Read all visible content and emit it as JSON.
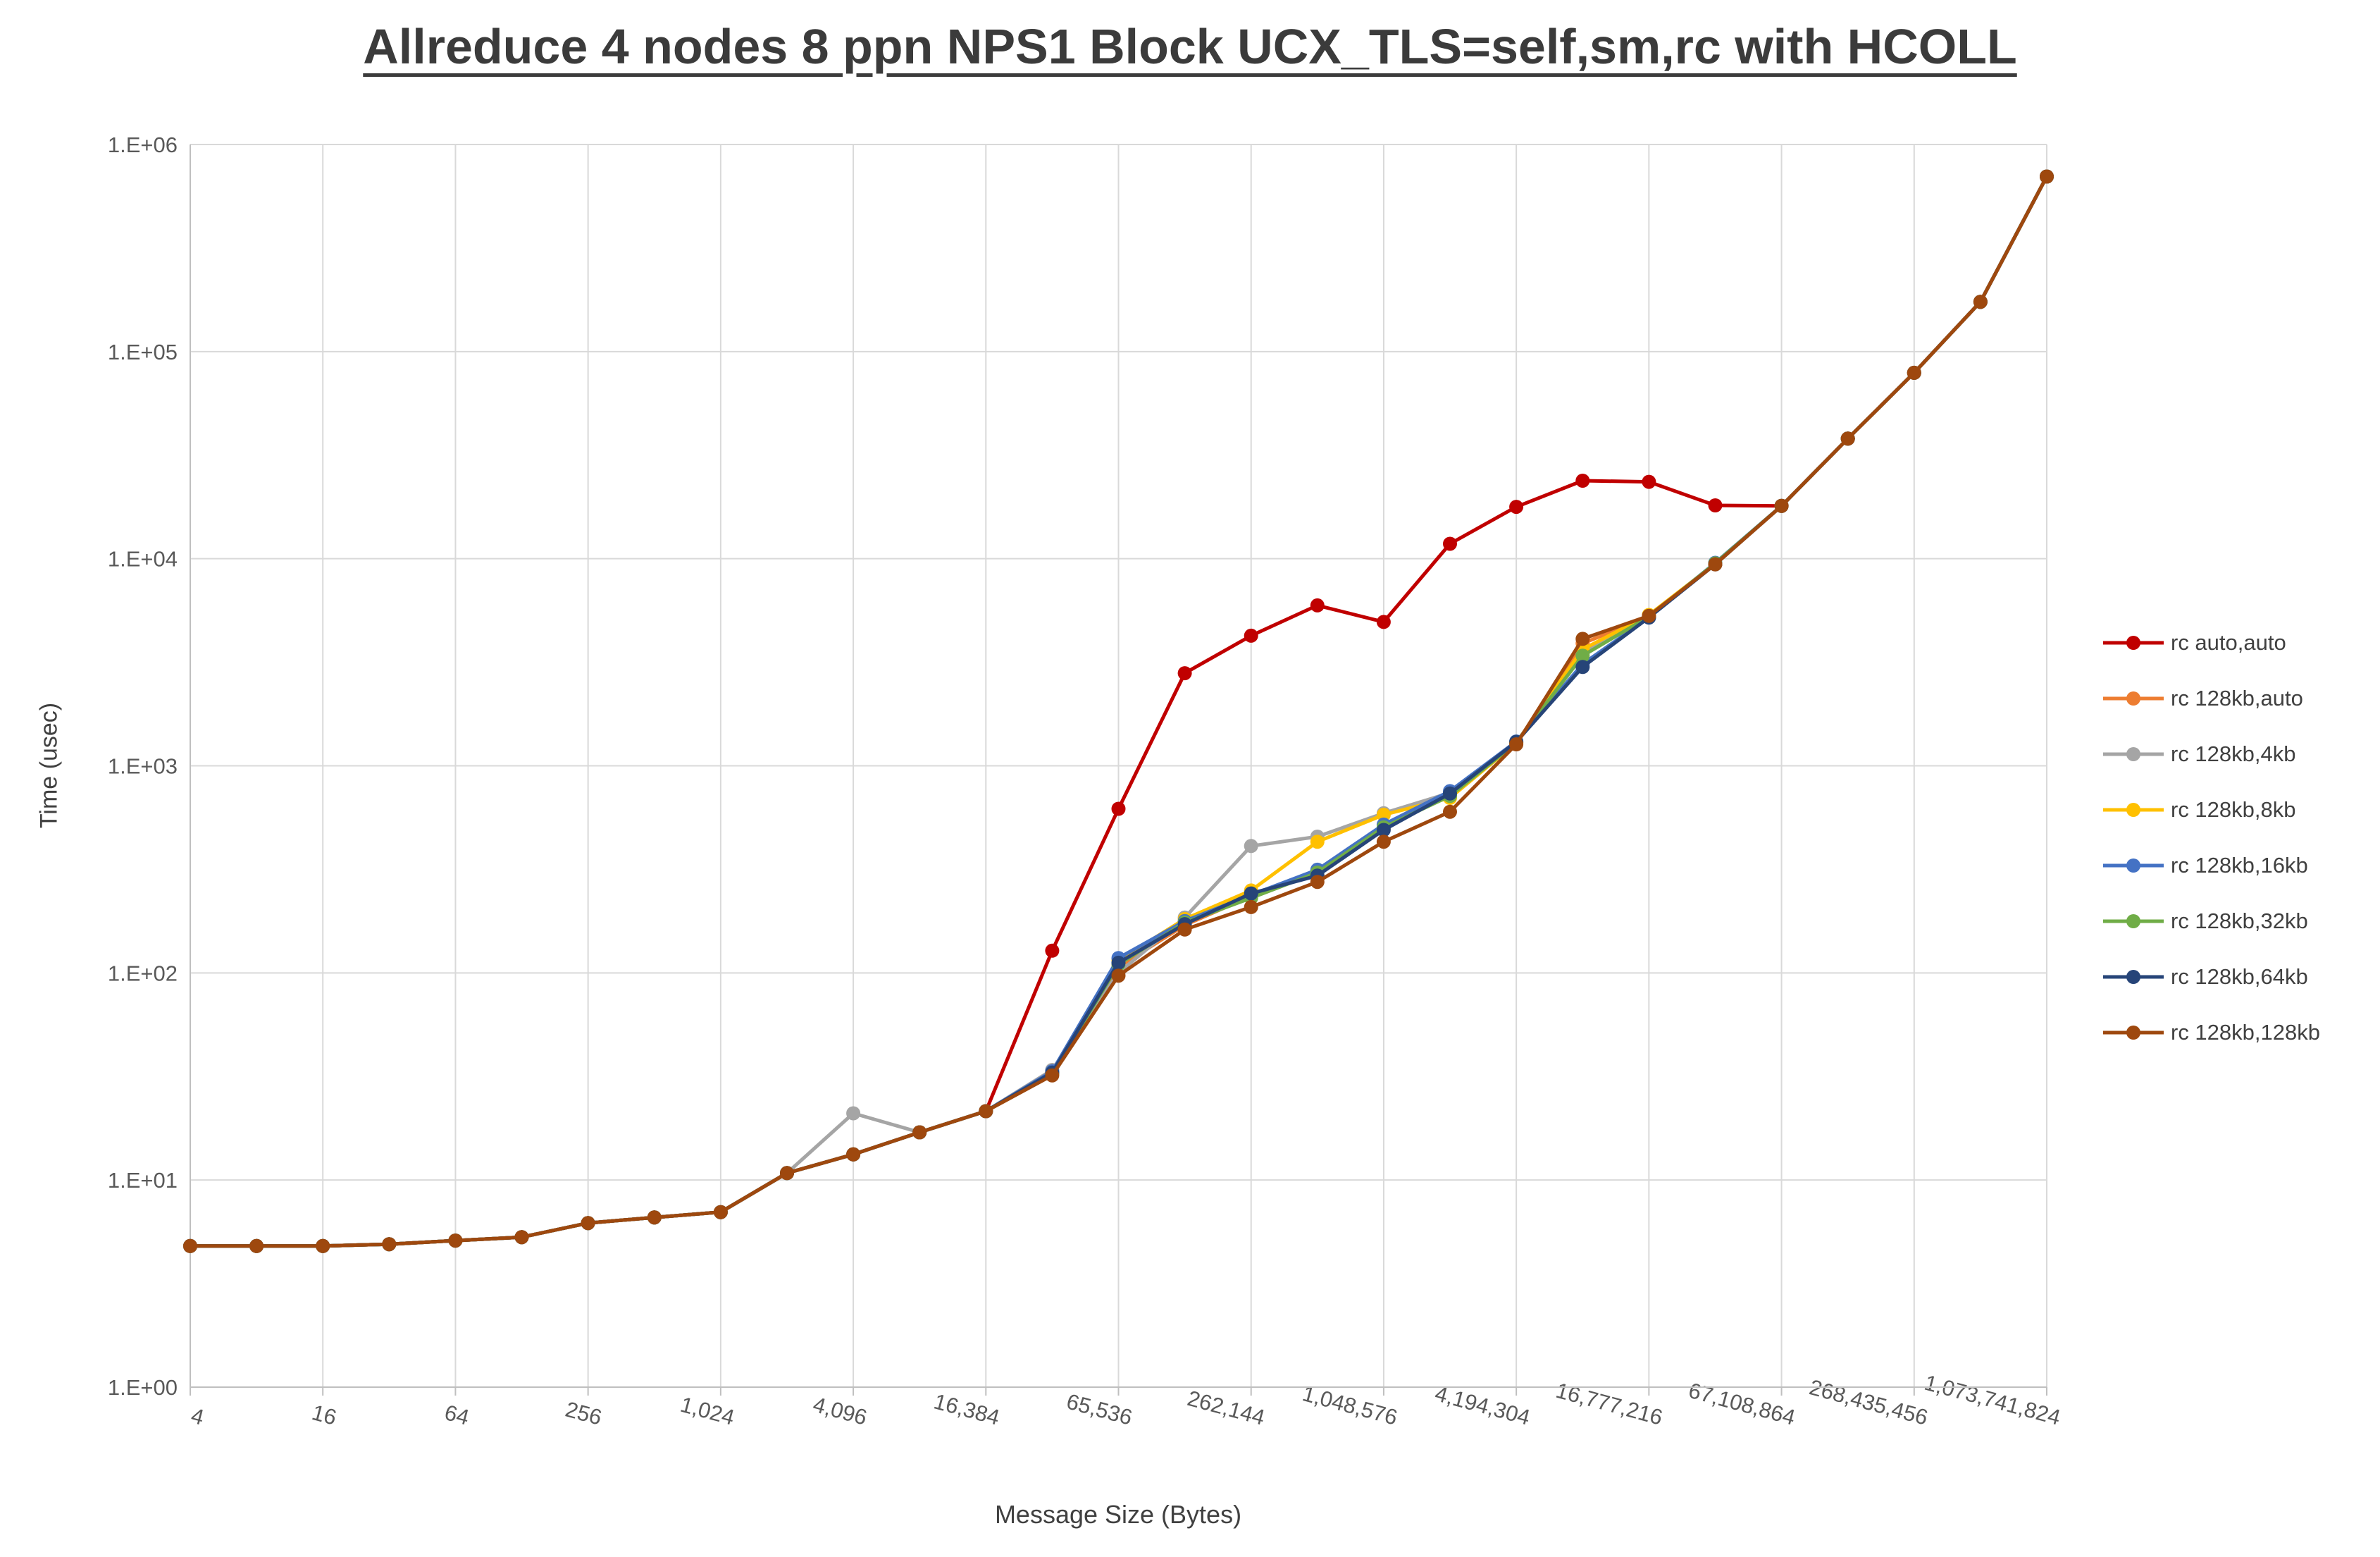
{
  "chart_data": {
    "type": "line",
    "title": "Allreduce 4 nodes 8 ppn NPS1 Block UCX_TLS=self,sm,rc with HCOLL",
    "xlabel": "Message Size (Bytes)",
    "ylabel": "Time (usec)",
    "x_scale": "log2",
    "y_scale": "log10",
    "grid": true,
    "legend_position": "right",
    "ylim": [
      1,
      1000000
    ],
    "x": [
      4,
      8,
      16,
      32,
      64,
      128,
      256,
      512,
      1024,
      2048,
      4096,
      8192,
      16384,
      32768,
      65536,
      131072,
      262144,
      524288,
      1048576,
      2097152,
      4194304,
      8388608,
      16777216,
      33554432,
      67108864,
      134217728,
      268435456,
      536870912,
      1073741824
    ],
    "x_ticks": [
      {
        "value": 4,
        "label": "4"
      },
      {
        "value": 16,
        "label": "16"
      },
      {
        "value": 64,
        "label": "64"
      },
      {
        "value": 256,
        "label": "256"
      },
      {
        "value": 1024,
        "label": "1,024"
      },
      {
        "value": 4096,
        "label": "4,096"
      },
      {
        "value": 16384,
        "label": "16,384"
      },
      {
        "value": 65536,
        "label": "65,536"
      },
      {
        "value": 262144,
        "label": "262,144"
      },
      {
        "value": 1048576,
        "label": "1,048,576"
      },
      {
        "value": 4194304,
        "label": "4,194,304"
      },
      {
        "value": 16777216,
        "label": "16,777,216"
      },
      {
        "value": 67108864,
        "label": "67,108,864"
      },
      {
        "value": 268435456,
        "label": "268,435,456"
      },
      {
        "value": 1073741824,
        "label": "1,073,741,824"
      }
    ],
    "y_ticks": [
      {
        "value": 1,
        "label": "1.E+00"
      },
      {
        "value": 10,
        "label": "1.E+01"
      },
      {
        "value": 100,
        "label": "1.E+02"
      },
      {
        "value": 1000,
        "label": "1.E+03"
      },
      {
        "value": 10000,
        "label": "1.E+04"
      },
      {
        "value": 100000,
        "label": "1.E+05"
      },
      {
        "value": 1000000,
        "label": "1.E+06"
      }
    ],
    "series": [
      {
        "name": "rc auto,auto",
        "color": "#C00000",
        "values": [
          4.8,
          4.8,
          4.8,
          4.9,
          5.1,
          5.3,
          6.2,
          6.6,
          7.0,
          10.8,
          13.3,
          17,
          21.5,
          128,
          620,
          2800,
          4250,
          5950,
          4950,
          11800,
          17800,
          23800,
          23500,
          18100,
          18000,
          38000,
          79000,
          174000,
          700000
        ]
      },
      {
        "name": "rc 128kb,auto",
        "color": "#ED7D31",
        "values": [
          4.8,
          4.8,
          4.8,
          4.9,
          5.1,
          5.3,
          6.2,
          6.6,
          7.0,
          10.8,
          13.3,
          17,
          21.5,
          33,
          107,
          170,
          235,
          310,
          500,
          725,
          1280,
          3900,
          5250,
          9400,
          18000,
          38000,
          79000,
          174000,
          700000
        ]
      },
      {
        "name": "rc 128kb,4kb",
        "color": "#A5A5A5",
        "values": [
          4.8,
          4.8,
          4.8,
          4.9,
          5.1,
          5.3,
          6.2,
          6.6,
          7.0,
          10.8,
          21,
          17,
          21.5,
          34,
          100,
          185,
          410,
          455,
          590,
          740,
          1300,
          3500,
          5300,
          9500,
          18000,
          38000,
          79000,
          174000,
          700000
        ]
      },
      {
        "name": "rc 128kb,8kb",
        "color": "#FFC000",
        "values": [
          4.8,
          4.8,
          4.8,
          4.9,
          5.1,
          5.3,
          6.2,
          6.6,
          7.0,
          10.8,
          13.3,
          17,
          21.5,
          33,
          115,
          182,
          250,
          430,
          580,
          700,
          1290,
          3650,
          5350,
          9450,
          18000,
          38000,
          79000,
          174000,
          700000
        ]
      },
      {
        "name": "rc 128kb,16kb",
        "color": "#4472C4",
        "values": [
          4.8,
          4.8,
          4.8,
          4.9,
          5.1,
          5.3,
          6.2,
          6.6,
          7.0,
          10.8,
          13.3,
          17,
          21.5,
          33.5,
          118,
          178,
          238,
          315,
          520,
          755,
          1310,
          3100,
          5200,
          9550,
          18000,
          38000,
          79000,
          174000,
          700000
        ]
      },
      {
        "name": "rc 128kb,32kb",
        "color": "#70AD47",
        "values": [
          4.8,
          4.8,
          4.8,
          4.9,
          5.1,
          5.3,
          6.2,
          6.6,
          7.0,
          10.8,
          13.3,
          17,
          21.5,
          32.5,
          110,
          175,
          230,
          305,
          505,
          715,
          1295,
          3400,
          5250,
          9500,
          18000,
          38000,
          79000,
          174000,
          700000
        ]
      },
      {
        "name": "rc 128kb,64kb",
        "color": "#264478",
        "values": [
          4.8,
          4.8,
          4.8,
          4.9,
          5.1,
          5.3,
          6.2,
          6.6,
          7.0,
          10.8,
          13.3,
          17,
          21.5,
          33,
          112,
          172,
          242,
          295,
          490,
          735,
          1305,
          3000,
          5200,
          9400,
          18000,
          38000,
          79000,
          174000,
          700000
        ]
      },
      {
        "name": "rc 128kb,128kb",
        "color": "#9E480E",
        "values": [
          4.8,
          4.8,
          4.8,
          4.9,
          5.1,
          5.3,
          6.2,
          6.6,
          7.0,
          10.8,
          13.3,
          17,
          21.5,
          32,
          97,
          162,
          208,
          275,
          430,
          600,
          1270,
          4100,
          5300,
          9400,
          18000,
          38000,
          79000,
          174000,
          700000
        ]
      }
    ]
  },
  "colors": {
    "grid": "#D9D9D9",
    "axis": "#BFBFBF",
    "tick_text": "#595959",
    "title_text": "#3B3B3B",
    "axis_title_text": "#404040"
  }
}
